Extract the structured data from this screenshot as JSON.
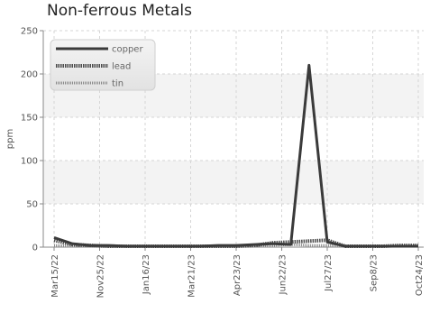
{
  "chart_data": {
    "type": "line",
    "title": "Non-ferrous Metals",
    "ylabel": "ppm",
    "ylim": [
      0,
      250
    ],
    "yticks": [
      0,
      50,
      100,
      150,
      200,
      250
    ],
    "xticks": [
      "Mar15/22",
      "Nov25/22",
      "Jan16/23",
      "Mar21/23",
      "Apr23/23",
      "Jun22/23",
      "Jul27/23",
      "Sep8/23",
      "Oct24/23"
    ],
    "grid": true,
    "legend": "top-left",
    "series": [
      {
        "name": "copper",
        "color": "#3a3a3a",
        "values": [
          11,
          4,
          2,
          2,
          1,
          1,
          1,
          1,
          1,
          2,
          2,
          3,
          4,
          3,
          210,
          6,
          1,
          1,
          1,
          1,
          1
        ]
      },
      {
        "name": "lead",
        "color": "#4a4a4a",
        "values": [
          8,
          3,
          2,
          1,
          1,
          1,
          1,
          1,
          1,
          1,
          1,
          2,
          5,
          6,
          7,
          8,
          1,
          1,
          1,
          2,
          2
        ]
      },
      {
        "name": "tin",
        "color": "#888888",
        "values": [
          2,
          1,
          1,
          1,
          1,
          1,
          1,
          1,
          1,
          1,
          1,
          1,
          2,
          3,
          2,
          2,
          1,
          1,
          1,
          1,
          1
        ]
      }
    ]
  }
}
